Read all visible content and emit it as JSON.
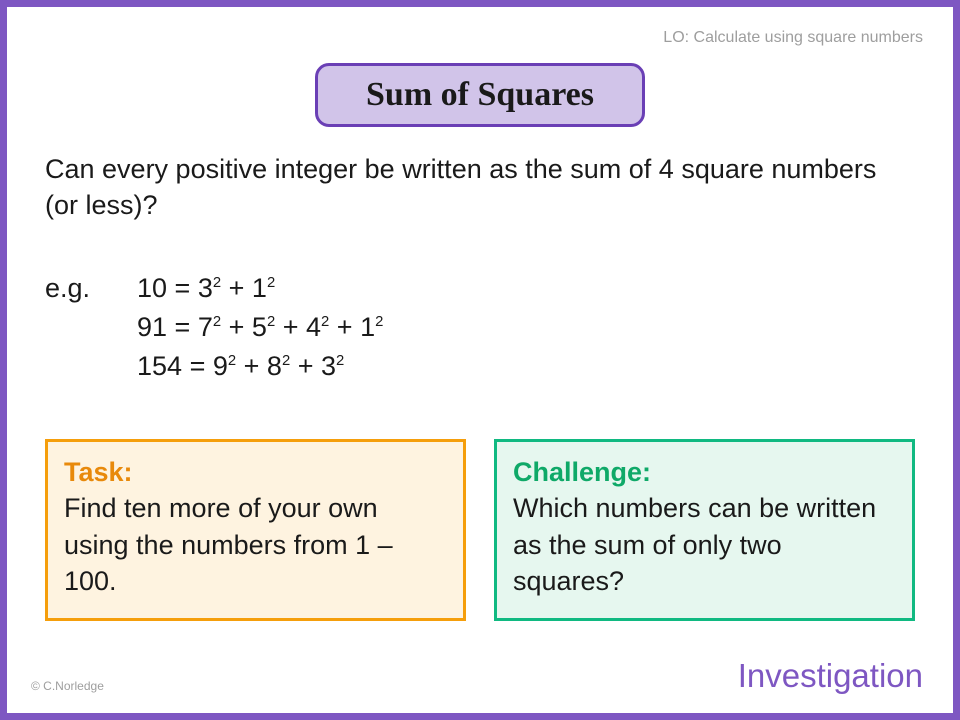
{
  "border_color": "#7E57C2",
  "lo_text": "LO: Calculate using square numbers",
  "title": {
    "text": "Sum of Squares",
    "bg": "#D1C4E9",
    "border": "#6A3FB5",
    "fontsize": 34
  },
  "question": "Can every positive integer be written as the sum of 4 square numbers (or less)?",
  "examples_label": "e.g.",
  "examples": [
    {
      "lhs": "10",
      "terms": [
        "3",
        "1"
      ]
    },
    {
      "lhs": "91",
      "terms": [
        "7",
        "5",
        "4",
        "1"
      ]
    },
    {
      "lhs": "154",
      "terms": [
        "9",
        "8",
        "3"
      ]
    }
  ],
  "task": {
    "heading": "Task:",
    "body": "Find ten more of your own using the numbers from 1 – 100.",
    "border": "#F59E0B",
    "bg": "#FEF3E0",
    "heading_color": "#E8890B"
  },
  "challenge": {
    "heading": "Challenge:",
    "body": "Which numbers can be written as the sum of only two squares?",
    "border": "#10B981",
    "bg": "#E6F7EF",
    "heading_color": "#0FA968"
  },
  "footer_type": "Investigation",
  "copyright": "© C.Norledge",
  "body_fontsize": 27,
  "text_color": "#1a1a1a"
}
